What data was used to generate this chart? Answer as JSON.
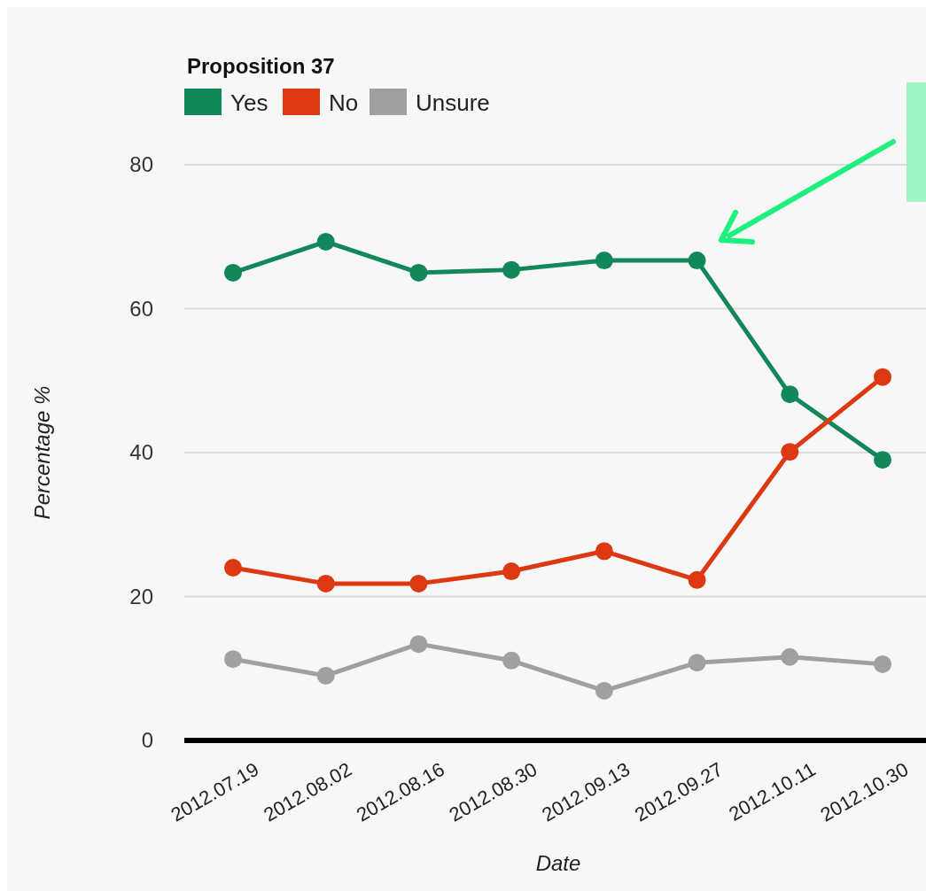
{
  "chart_data": {
    "type": "line",
    "legend_title": "Proposition 37",
    "xlabel": "Date",
    "ylabel": "Percentage %",
    "categories": [
      "2012.07.19",
      "2012.08.02",
      "2012.08.16",
      "2012.08.30",
      "2012.09.13",
      "2012.09.27",
      "2012.10.11",
      "2012.10.30"
    ],
    "series": [
      {
        "name": "Yes",
        "color": "#12875a",
        "values": [
          65,
          69.3,
          65,
          65.4,
          66.7,
          66.7,
          48.1,
          39
        ]
      },
      {
        "name": "No",
        "color": "#dc3912",
        "values": [
          24,
          21.8,
          21.8,
          23.5,
          26.3,
          22.3,
          40.1,
          50.5
        ]
      },
      {
        "name": "Unsure",
        "color": "#a0a0a0",
        "values": [
          11.3,
          9,
          13.4,
          11.1,
          6.9,
          10.8,
          11.6,
          10.6
        ]
      }
    ],
    "ylim": [
      0,
      80
    ],
    "yticks": [
      0,
      20,
      40,
      60,
      80
    ],
    "grid": "y",
    "legend": "top left",
    "marker": "circle",
    "line_style": "solid"
  }
}
